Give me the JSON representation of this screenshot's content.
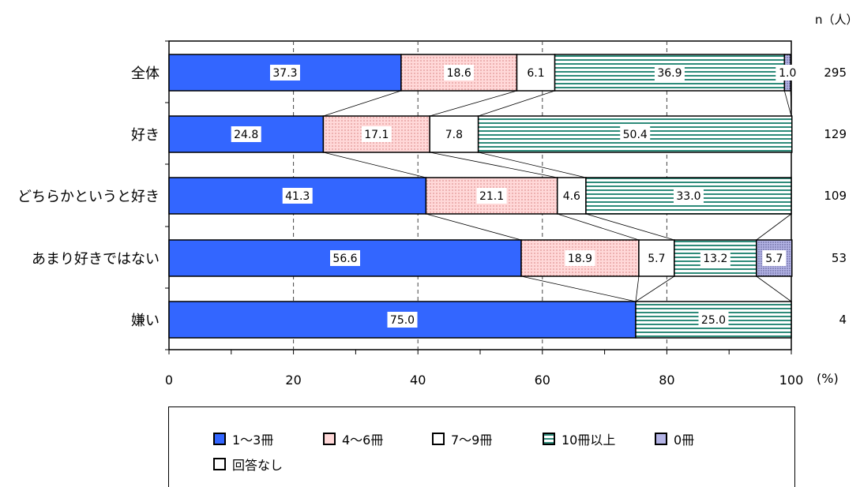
{
  "chart_data": {
    "type": "bar",
    "orientation": "horizontal",
    "stacked": true,
    "categories": [
      "全体",
      "好き",
      "どちらかというと好き",
      "あまり好きではない",
      "嫌い"
    ],
    "n_values": [
      "295",
      "129",
      "109",
      "53",
      "4"
    ],
    "n_header": "n（人）",
    "x_unit": "(%)",
    "xlim": [
      0,
      100
    ],
    "x_ticks": [
      "0",
      "20",
      "40",
      "60",
      "80",
      "100"
    ],
    "grid": "vertical dashed",
    "series": [
      {
        "name": "1～3冊",
        "values": [
          37.3,
          24.8,
          41.3,
          56.6,
          75.0
        ],
        "labels": [
          "37.3",
          "24.8",
          "41.3",
          "56.6",
          "75.0"
        ]
      },
      {
        "name": "4～6冊",
        "values": [
          18.6,
          17.1,
          21.1,
          18.9,
          0
        ],
        "labels": [
          "18.6",
          "17.1",
          "21.1",
          "18.9",
          ""
        ]
      },
      {
        "name": "7～9冊",
        "values": [
          6.1,
          7.8,
          4.6,
          5.7,
          0
        ],
        "labels": [
          "6.1",
          "7.8",
          "4.6",
          "5.7",
          ""
        ]
      },
      {
        "name": "10冊以上",
        "values": [
          36.9,
          50.4,
          33.0,
          13.2,
          25.0
        ],
        "labels": [
          "36.9",
          "50.4",
          "33.0",
          "13.2",
          "25.0"
        ]
      },
      {
        "name": "0冊",
        "values": [
          1.0,
          0,
          0,
          5.7,
          0
        ],
        "labels": [
          "1.0",
          "",
          "",
          "5.7",
          ""
        ]
      },
      {
        "name": "回答なし",
        "values": [
          0,
          0,
          0,
          0,
          0
        ],
        "labels": [
          "",
          "",
          "",
          "",
          ""
        ]
      }
    ],
    "colors": {
      "s1": "#3366ff",
      "s2": "#ffd8d8",
      "s3": "#ffffff",
      "s4": "#ffffff",
      "s4_stripe": "#2e8b7a",
      "s5": "#b4b4e6",
      "s6": "#ffffff"
    },
    "legend_placement": "bottom"
  }
}
